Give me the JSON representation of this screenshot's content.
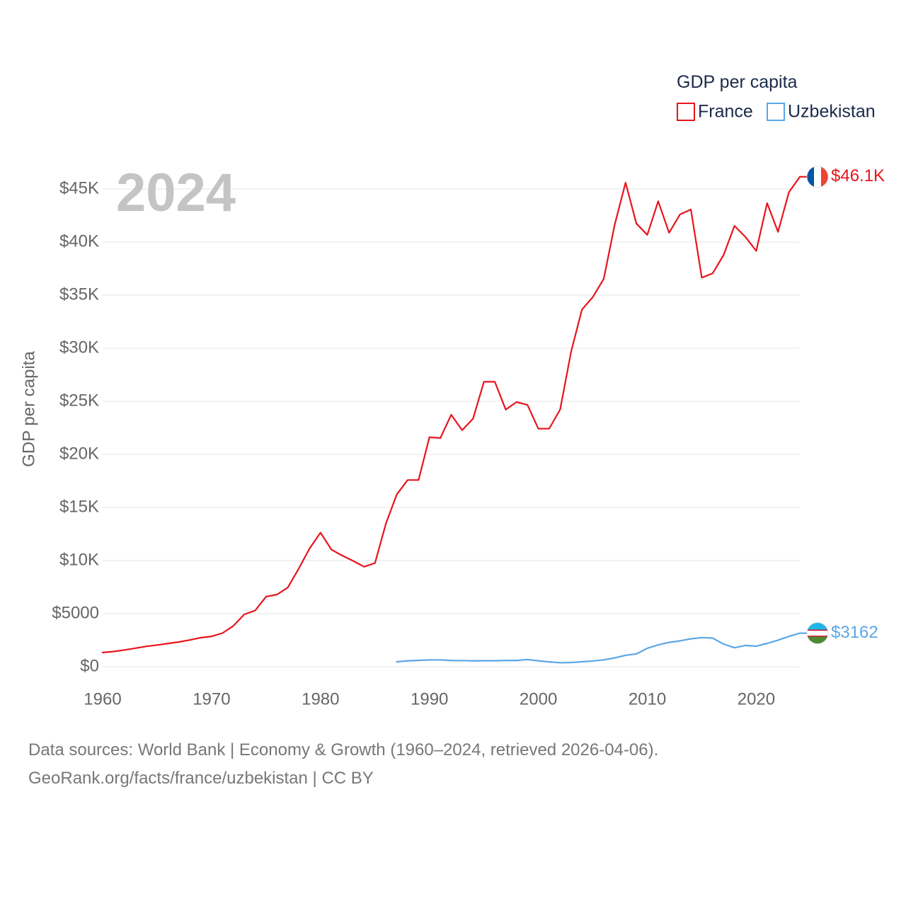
{
  "chart_data": {
    "type": "line",
    "title": "GDP per capita",
    "ylabel": "GDP per capita",
    "xlabel": "",
    "current_year": "2024",
    "xlim": [
      1960,
      2024
    ],
    "ylim": [
      0,
      47000
    ],
    "grid": true,
    "legend_position": "top-right",
    "x_ticks": [
      1960,
      1970,
      1980,
      1990,
      2000,
      2010,
      2020
    ],
    "y_ticks": [
      0,
      5000,
      10000,
      15000,
      20000,
      25000,
      30000,
      35000,
      40000,
      45000
    ],
    "y_tick_labels": [
      "$0",
      "$5000",
      "$10K",
      "$15K",
      "$20K",
      "$25K",
      "$30K",
      "$35K",
      "$40K",
      "$45K"
    ],
    "series": [
      {
        "name": "France",
        "color": "#e8141c",
        "end_label": "$46.1K",
        "x": [
          1960,
          1961,
          1962,
          1963,
          1964,
          1965,
          1966,
          1967,
          1968,
          1969,
          1970,
          1971,
          1972,
          1973,
          1974,
          1975,
          1976,
          1977,
          1978,
          1979,
          1980,
          1981,
          1982,
          1983,
          1984,
          1985,
          1986,
          1987,
          1988,
          1989,
          1990,
          1991,
          1992,
          1993,
          1994,
          1995,
          1996,
          1997,
          1998,
          1999,
          2000,
          2001,
          2002,
          2003,
          2004,
          2005,
          2006,
          2007,
          2008,
          2009,
          2010,
          2011,
          2012,
          2013,
          2014,
          2015,
          2016,
          2017,
          2018,
          2019,
          2020,
          2021,
          2022,
          2023,
          2024
        ],
        "values": [
          1340,
          1430,
          1580,
          1750,
          1920,
          2050,
          2190,
          2330,
          2520,
          2740,
          2860,
          3170,
          3850,
          4930,
          5290,
          6600,
          6800,
          7460,
          9240,
          11140,
          12630,
          11040,
          10470,
          9970,
          9420,
          9770,
          13480,
          16220,
          17590,
          17590,
          21620,
          21540,
          23730,
          22290,
          23360,
          26840,
          26840,
          24220,
          24930,
          24660,
          22420,
          22430,
          24230,
          29660,
          33650,
          34830,
          36540,
          41630,
          45590,
          41750,
          40680,
          43850,
          40880,
          42610,
          43070,
          36650,
          37060,
          38780,
          41530,
          40490,
          39170,
          43670,
          40960,
          44690,
          46150
        ]
      },
      {
        "name": "Uzbekistan",
        "color": "#5ba7e6",
        "end_label": "$3162",
        "x": [
          1987,
          1988,
          1989,
          1990,
          1991,
          1992,
          1993,
          1994,
          1995,
          1996,
          1997,
          1998,
          1999,
          2000,
          2001,
          2002,
          2003,
          2004,
          2005,
          2006,
          2007,
          2008,
          2009,
          2010,
          2011,
          2012,
          2013,
          2014,
          2015,
          2016,
          2017,
          2018,
          2019,
          2020,
          2021,
          2022,
          2023,
          2024
        ],
        "values": [
          470,
          560,
          600,
          650,
          650,
          590,
          580,
          560,
          570,
          570,
          590,
          590,
          680,
          560,
          460,
          380,
          400,
          470,
          550,
          650,
          830,
          1080,
          1210,
          1740,
          2060,
          2290,
          2440,
          2630,
          2750,
          2700,
          2130,
          1790,
          2010,
          1940,
          2200,
          2510,
          2860,
          3162
        ]
      }
    ]
  },
  "legend": {
    "title": "GDP per capita",
    "items": [
      "France",
      "Uzbekistan"
    ]
  },
  "source": {
    "line1": "Data sources: World Bank | Economy & Growth (1960–2024, retrieved 2026-04-06).",
    "line2": "GeoRank.org/facts/france/uzbekistan | CC BY"
  }
}
